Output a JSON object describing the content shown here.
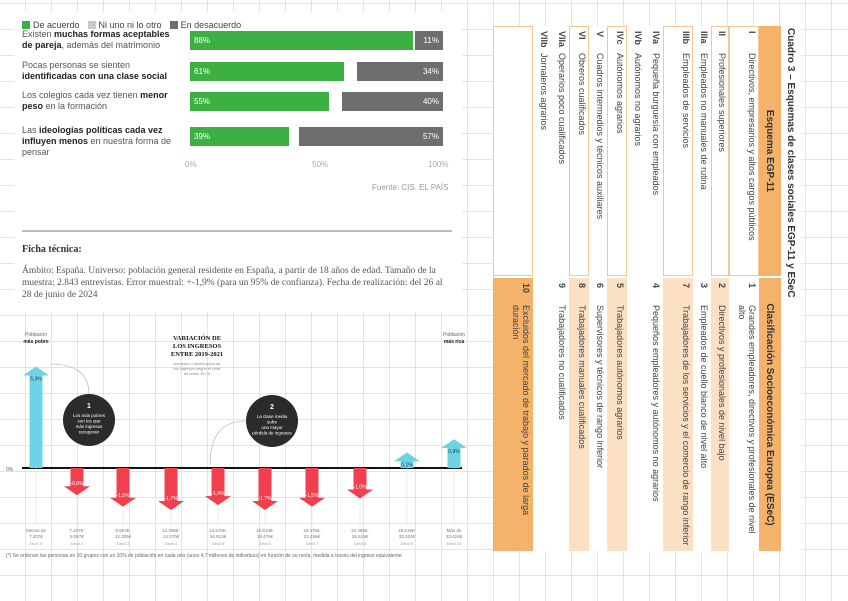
{
  "survey": {
    "legend": [
      {
        "label": "De acuerdo",
        "color": "#3cb043"
      },
      {
        "label": "Ni uno ni lo otro",
        "color": "#c9c9c9"
      },
      {
        "label": "En desacuerdo",
        "color": "#6e6e6e"
      }
    ],
    "rows": [
      {
        "pre": "Existen ",
        "bold": "muchas formas aceptables de pareja",
        "post": ", además del matrimonio",
        "agree": 88,
        "agree_label": "88%",
        "disagree": 11,
        "disagree_label": "11%"
      },
      {
        "pre": "Pocas personas se sienten ",
        "bold": "identificadas con una clase social",
        "post": "",
        "agree": 61,
        "agree_label": "61%",
        "disagree": 34,
        "disagree_label": "34%"
      },
      {
        "pre": "Los colegios cada vez tienen ",
        "bold": "menor peso",
        "post": " en la formación",
        "agree": 55,
        "agree_label": "55%",
        "disagree": 40,
        "disagree_label": "40%"
      },
      {
        "pre": "Las ",
        "bold": "ideologías políticas cada vez influyen menos",
        "post": " en nuestra forma de pensar",
        "agree": 39,
        "agree_label": "39%",
        "disagree": 57,
        "disagree_label": "57%"
      }
    ],
    "axis": [
      "0%",
      "50%",
      "100%"
    ],
    "source": "Fuente: CIS. EL PAÍS"
  },
  "ficha": {
    "title": "Ficha técnica:",
    "text": "Ámbito: España. Universo: población general residente en España, a partir de 18 años de edad. Tamaño de la muestra: 2.843 entrevistas. Error muestral: +-1,9% (para un 95% de confianza). Fecha de realización: del 26 al 28 de junio de 2024"
  },
  "chart_data": {
    "type": "bar",
    "title": "VARIACIÓN DE LOS INGRESOS ENTRE 2019-2021",
    "subtitle": "Aumento o disminución de los ingresos según el nivel de renta. En %",
    "left_label": [
      "Población",
      "más pobre"
    ],
    "right_label": [
      "Población",
      "más rica"
    ],
    "zero_label": "0%",
    "categories": [
      {
        "range": [
          "Menos de",
          "7.207€"
        ],
        "decil": "Decil 1*"
      },
      {
        "range": [
          "7.207€-",
          "9.957€"
        ],
        "decil": "Decil 2"
      },
      {
        "range": [
          "9.957€-",
          "12.305€"
        ],
        "decil": "Decil 3"
      },
      {
        "range": [
          "12.305€-",
          "14.570€"
        ],
        "decil": "Decil 4"
      },
      {
        "range": [
          "14.570€-",
          "16.813€"
        ],
        "decil": "Decil 5"
      },
      {
        "range": [
          "16.813€-",
          "19.476€"
        ],
        "decil": "Decil 6"
      },
      {
        "range": [
          "19.476€-",
          "22.456€"
        ],
        "decil": "Decil 7"
      },
      {
        "range": [
          "22.456€-",
          "26.619€"
        ],
        "decil": "Decil 8"
      },
      {
        "range": [
          "26.619€-",
          "33.424€"
        ],
        "decil": "Decil 9"
      },
      {
        "range": [
          "Más de",
          "33.424€"
        ],
        "decil": "Decil 10"
      }
    ],
    "values": [
      5.3,
      -0.8,
      -1.5,
      -1.7,
      -1.4,
      -1.7,
      -1.5,
      -1.0,
      0.1,
      0.9
    ],
    "value_labels": [
      "5,3%",
      "-0,8%",
      "-1,5%",
      "-1,7%",
      "-1,4%",
      "-1,7%",
      "-1,5%",
      "-1,0%",
      "0,1%",
      "0,9%"
    ],
    "colors": {
      "positive": "#6fd3e6",
      "negative": "#f0404e"
    },
    "callouts": [
      {
        "num": "1",
        "text": "Los más pobres son los que más ingresos recuperan"
      },
      {
        "num": "2",
        "text": "La clase media sufre una mayor pérdida de ingresos"
      }
    ],
    "footnote": "(*) Se ordenan las personas en 10 grupos con un 10% de población en cada uno (unos 4,7 millones de individuos) en función de su renta, medida a través del ingreso equivalente."
  },
  "cuadro": {
    "title": "Cuadro 3 – Esquemas de clases sociales EGP-11 y ESeC",
    "h1": "Esquema EGP-11",
    "h2": "Clasificación Socioeconómica Europea (ESeC)",
    "rows": [
      {
        "c1": "I",
        "l1": "Directivos, empresarios y altos cargos públicos",
        "box": true,
        "c2": "1",
        "l2": "Grandes empleadores, directivos y profesionales de nivel alto",
        "fill": "",
        "h": 30
      },
      {
        "c1": "II",
        "l1": "Profesionales superiores",
        "box": true,
        "c2": "2",
        "l2": "Directivos y profesionales de nivel bajo",
        "fill": "f1",
        "h": 18
      },
      {
        "c1": "IIIa",
        "l1": "Empleados no manuales de rutina",
        "box": false,
        "c2": "3",
        "l2": "Empleados de cuello blanco de nivel alto",
        "fill": "",
        "h": 18
      },
      {
        "c1": "IIIb",
        "l1": "Empleados de servicios",
        "box": true,
        "c2": "7",
        "l2": "Trabajadores de los servicios y el comercio de rango inferior",
        "fill": "f1",
        "h": 30
      },
      {
        "c1": "IVa",
        "l1": "Pequeña burguesía con empleados",
        "box": false,
        "c2": "4",
        "l2": "Pequeños empleadores y autónomos no agrarios",
        "fill": "",
        "h": 18
      },
      {
        "c1": "IVb",
        "l1": "Autónomos no agrarios",
        "box": false,
        "c2": "",
        "l2": "",
        "fill": "",
        "h": 18
      },
      {
        "c1": "IVc",
        "l1": "Autónomos agrarios",
        "box": true,
        "c2": "5",
        "l2": "Trabajadores autónomos agrarios",
        "fill": "f1",
        "h": 20
      },
      {
        "c1": "V",
        "l1": "Cuadros intermedios y técnicos auxiliares",
        "box": false,
        "c2": "6",
        "l2": "Supervisores y técnicos de rango inferior",
        "fill": "",
        "h": 18
      },
      {
        "c1": "VI",
        "l1": "Obreros cualificados",
        "box": true,
        "c2": "8",
        "l2": "Trabajadores manuales cualificados",
        "fill": "f1",
        "h": 20
      },
      {
        "c1": "VIIa",
        "l1": "Operarios poco cualificados",
        "box": false,
        "c2": "9",
        "l2": "Trabajadores no cualificados",
        "fill": "",
        "h": 18
      },
      {
        "c1": "VIIb",
        "l1": "Jornaleros agrarios",
        "box": false,
        "c2": "",
        "l2": "",
        "fill": "",
        "h": 18
      },
      {
        "c1": "",
        "l1": "",
        "box": true,
        "c2": "10",
        "l2": "Excluidos del mercado de trabajo y parados de larga duración",
        "fill": "f2",
        "h": 40
      }
    ]
  }
}
